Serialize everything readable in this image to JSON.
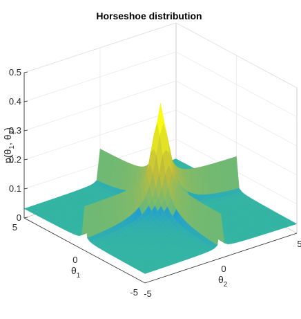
{
  "chart_data": {
    "type": "surface",
    "title": "Horseshoe distribution",
    "xlabel_base": "θ",
    "xlabel_sub": "1",
    "ylabel_base": "θ",
    "ylabel_sub": "2",
    "zlabel_parts": [
      "p(",
      "θ",
      "1",
      ", ",
      "θ",
      "2",
      ")"
    ],
    "xlim": [
      -5,
      5
    ],
    "ylim": [
      -5,
      5
    ],
    "zlim": [
      0,
      0.5
    ],
    "x_ticks": [
      "-5",
      "0",
      "5"
    ],
    "y_ticks": [
      "-5",
      "0",
      "5"
    ],
    "z_ticks": [
      "0",
      "0.1",
      "0.2",
      "0.3",
      "0.4",
      "0.5"
    ],
    "colormap": [
      "#3e26a8",
      "#1f96dc",
      "#35b79e",
      "#bfbc3b",
      "#f9fb15"
    ],
    "peak": {
      "theta1": 0,
      "theta2": 0,
      "p": 0.42
    },
    "base_value": 0.03,
    "grid": true
  }
}
